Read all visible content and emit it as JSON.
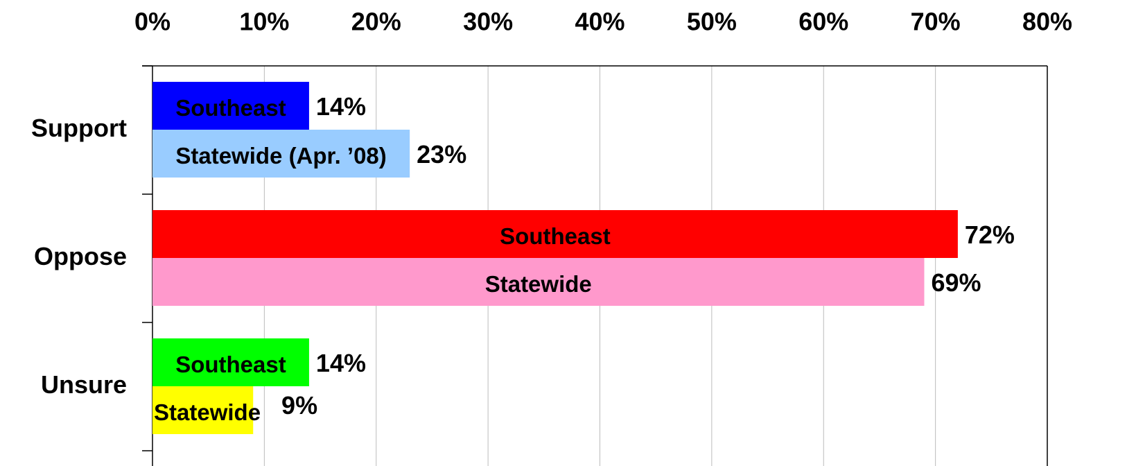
{
  "chart_data": {
    "type": "bar",
    "orientation": "horizontal",
    "categories": [
      "Support",
      "Oppose",
      "Unsure"
    ],
    "series": [
      {
        "labels": [
          "Southeast",
          "Southeast",
          "Southeast"
        ],
        "colors": [
          "#0000ff",
          "#ff0000",
          "#00ff00"
        ],
        "values": [
          14,
          72,
          14
        ],
        "value_labels": [
          "14%",
          "72%",
          "14%"
        ]
      },
      {
        "labels": [
          "Statewide (Apr. ’08)",
          "Statewide",
          "Statewide"
        ],
        "colors": [
          "#99ccff",
          "#ff99cc",
          "#ffff00"
        ],
        "values": [
          23,
          69,
          9
        ],
        "value_labels": [
          "23%",
          "69%",
          "9%"
        ]
      }
    ],
    "xlim": [
      0,
      80
    ],
    "xticks": [
      {
        "value": 0,
        "label": "0%"
      },
      {
        "value": 10,
        "label": "10%"
      },
      {
        "value": 20,
        "label": "20%"
      },
      {
        "value": 30,
        "label": "30%"
      },
      {
        "value": 40,
        "label": "40%"
      },
      {
        "value": 50,
        "label": "50%"
      },
      {
        "value": 60,
        "label": "60%"
      },
      {
        "value": 70,
        "label": "70%"
      },
      {
        "value": 80,
        "label": "80%"
      }
    ],
    "grid": true
  }
}
